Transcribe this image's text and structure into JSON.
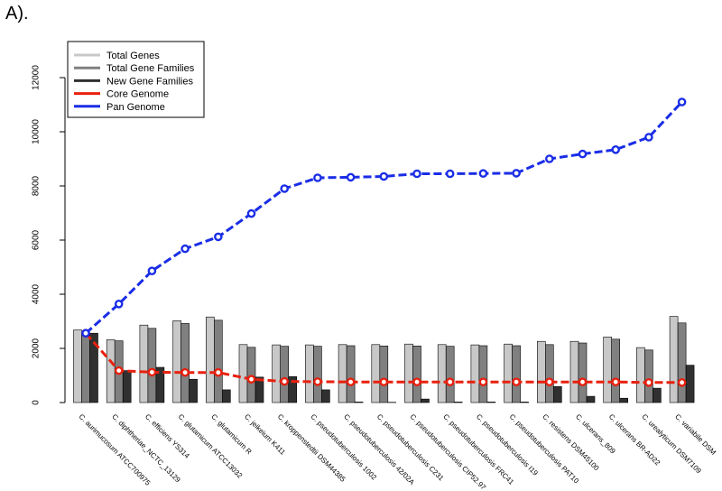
{
  "panel_label": "A).",
  "chart_data": {
    "type": "bar",
    "title": "",
    "xlabel": "",
    "ylabel": "",
    "ylim": [
      0,
      12000
    ],
    "yticks": [
      0,
      2000,
      4000,
      6000,
      8000,
      10000,
      12000
    ],
    "grid": false,
    "legend_position": "top-left",
    "categories": [
      "C. aurimucosum ATCC700975",
      "C. diphtheriae_NCTC_13129",
      "C. efficiens YS314",
      "C. glutamicum ATCC13032",
      "C. glutamicum R",
      "C. jeikeium K411",
      "C. kroppenstedtii DSM44385",
      "C. pseudotuberculosis 1002",
      "C. pseudotuberculosis 42/02A",
      "C. pseudotuberculosis C231",
      "C. pseudotuberculosis CIP52.97",
      "C. pseudotuberculosis FRC41",
      "C. pseudotuberculosis I19",
      "C. pseudotuberculosis PAT10",
      "C. resistens DSM45100",
      "C. ulcerans_809",
      "C. ulcerans BR-AD22",
      "C. urealyticum DSM7109",
      "C. variabile DSM"
    ],
    "series": [
      {
        "name": "Total Genes",
        "kind": "bar",
        "color": "#c8c8c8",
        "values": [
          2680,
          2320,
          2860,
          3020,
          3160,
          2140,
          2130,
          2130,
          2140,
          2140,
          2160,
          2140,
          2130,
          2160,
          2260,
          2260,
          2420,
          2030,
          3180
        ]
      },
      {
        "name": "Total Gene Families",
        "kind": "bar",
        "color": "#808080",
        "values": [
          2560,
          2280,
          2740,
          2920,
          3040,
          2040,
          2080,
          2080,
          2100,
          2090,
          2090,
          2080,
          2100,
          2100,
          2140,
          2200,
          2340,
          1940,
          2940
        ]
      },
      {
        "name": "New Gene Families",
        "kind": "bar",
        "color": "#303030",
        "values": [
          2560,
          1180,
          1300,
          860,
          470,
          940,
          960,
          470,
          20,
          10,
          130,
          20,
          20,
          20,
          590,
          230,
          160,
          530,
          1380
        ]
      },
      {
        "name": "Core Genome",
        "kind": "line",
        "color": "#e8200f",
        "values": [
          2560,
          1180,
          1120,
          1110,
          1110,
          860,
          780,
          770,
          760,
          760,
          760,
          760,
          760,
          760,
          760,
          760,
          760,
          740,
          740
        ]
      },
      {
        "name": "Pan Genome",
        "kind": "line",
        "color": "#1a2de6",
        "values": [
          2560,
          3640,
          4860,
          5680,
          6120,
          6980,
          7900,
          8300,
          8320,
          8350,
          8450,
          8450,
          8460,
          8470,
          9000,
          9180,
          9340,
          9800,
          11100
        ]
      }
    ]
  }
}
